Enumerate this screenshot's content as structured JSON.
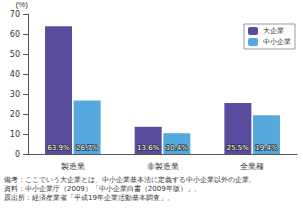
{
  "chart_data": {
    "type": "bar",
    "y_label": "(%)",
    "categories": [
      "製造業",
      "非製造業",
      "全業種"
    ],
    "series": [
      {
        "name": "大企業",
        "color": "#5b4b9f",
        "values": [
          63.9,
          13.6,
          25.5
        ],
        "value_labels": [
          "63.9%",
          "13.6%",
          "25.5%"
        ]
      },
      {
        "name": "中小企業",
        "color": "#55a9dc",
        "values": [
          26.7,
          10.4,
          19.4
        ],
        "value_labels": [
          "26.7%",
          "10.4%",
          "19.4%"
        ]
      }
    ],
    "ylim": [
      0,
      70
    ],
    "yticks": [
      0,
      10,
      20,
      30,
      40,
      50,
      60,
      70
    ],
    "grid": false,
    "legend": "top-right",
    "data_labels": true,
    "annotations": [
      "備考：ここでいう大企業とは、中小企業基本法に定義する中小企業以外の企業。",
      "資料：中小企業庁（2009）「中小企業白書（2009年版）」。",
      "原出所：経済産業省「平成19年企業活動基本調査」。"
    ]
  }
}
